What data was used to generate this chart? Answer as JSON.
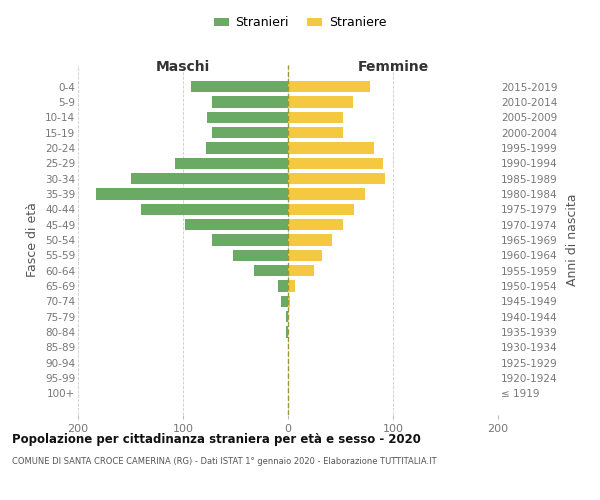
{
  "age_groups": [
    "100+",
    "95-99",
    "90-94",
    "85-89",
    "80-84",
    "75-79",
    "70-74",
    "65-69",
    "60-64",
    "55-59",
    "50-54",
    "45-49",
    "40-44",
    "35-39",
    "30-34",
    "25-29",
    "20-24",
    "15-19",
    "10-14",
    "5-9",
    "0-4"
  ],
  "birth_years": [
    "≤ 1919",
    "1920-1924",
    "1925-1929",
    "1930-1934",
    "1935-1939",
    "1940-1944",
    "1945-1949",
    "1950-1954",
    "1955-1959",
    "1960-1964",
    "1965-1969",
    "1970-1974",
    "1975-1979",
    "1980-1984",
    "1985-1989",
    "1990-1994",
    "1995-1999",
    "2000-2004",
    "2005-2009",
    "2010-2014",
    "2015-2019"
  ],
  "males": [
    0,
    0,
    0,
    0,
    2,
    2,
    7,
    10,
    32,
    52,
    72,
    98,
    140,
    183,
    150,
    108,
    78,
    72,
    77,
    72,
    92
  ],
  "females": [
    0,
    0,
    0,
    0,
    0,
    0,
    2,
    7,
    25,
    32,
    42,
    52,
    63,
    73,
    92,
    90,
    82,
    52,
    52,
    62,
    78
  ],
  "male_color": "#6aaa64",
  "female_color": "#f5c842",
  "background_color": "#ffffff",
  "grid_color": "#cccccc",
  "title": "Popolazione per cittadinanza straniera per età e sesso - 2020",
  "subtitle": "COMUNE DI SANTA CROCE CAMERINA (RG) - Dati ISTAT 1° gennaio 2020 - Elaborazione TUTTITALIA.IT",
  "xlabel_left": "Maschi",
  "xlabel_right": "Femmine",
  "ylabel_left": "Fasce di età",
  "ylabel_right": "Anni di nascita",
  "legend_male": "Stranieri",
  "legend_female": "Straniere",
  "xlim": 200
}
